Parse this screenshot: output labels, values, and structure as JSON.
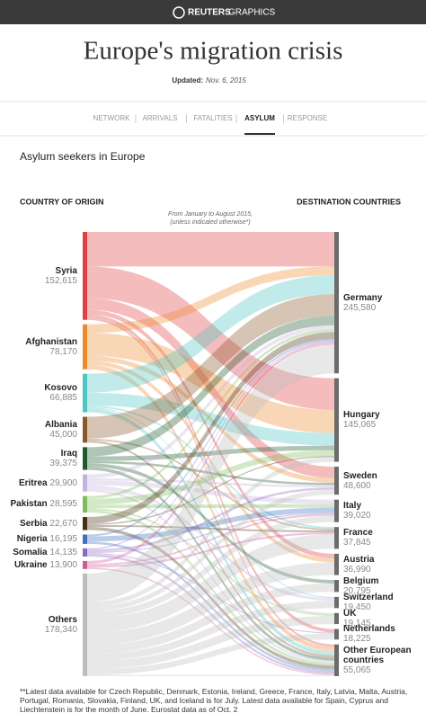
{
  "header": {
    "brand": "REUTERS",
    "brand_sub": "GRAPHICS",
    "title": "Europe's migration crisis",
    "updated_label": "Updated:",
    "updated_date": "Nov. 6, 2015"
  },
  "nav": {
    "items": [
      "NETWORK",
      "ARRIVALS",
      "FATALITIES",
      "ASYLUM",
      "RESPONSE"
    ],
    "active": "ASYLUM"
  },
  "chart_data": {
    "type": "sankey",
    "title": "Asylum seekers in Europe",
    "left_label": "COUNTRY OF ORIGIN",
    "right_label": "DESTINATION COUNTRIES",
    "note": [
      "From January to August 2015,",
      "(unless indicated otherwise*)"
    ],
    "sources": {
      "names": [
        "Syria",
        "Afghanistan",
        "Kosovo",
        "Albania",
        "Iraq",
        "Eritrea",
        "Pakistan",
        "Serbia",
        "Nigeria",
        "Somalia",
        "Ukraine",
        "Others"
      ],
      "values": [
        152615,
        78170,
        66885,
        45000,
        39375,
        29900,
        28595,
        22670,
        16195,
        14135,
        13900,
        178340
      ],
      "value_labels": [
        "152,615",
        "78,170",
        "66,885",
        "45,000",
        "39,375",
        "29,900",
        "28,595",
        "22,670",
        "16,195",
        "14,135",
        "13,900",
        "178,340"
      ],
      "colors": [
        "#e0403f",
        "#ee8a2e",
        "#4cc6c4",
        "#8a5a2b",
        "#1f5a2e",
        "#c4b3de",
        "#7cbf5a",
        "#4a2e12",
        "#3f6fbf",
        "#8a6ac0",
        "#d05a98",
        "#bdbdbd"
      ]
    },
    "targets": {
      "names": [
        "Germany",
        "Hungary",
        "Sweden",
        "Italy",
        "France",
        "Austria",
        "Belgium",
        "Switzerland",
        "UK",
        "Netherlands",
        "Other European countries"
      ],
      "values": [
        245580,
        145065,
        48600,
        39020,
        37845,
        36990,
        20795,
        19450,
        19145,
        18225,
        55065
      ],
      "value_labels": [
        "245,580",
        "145,065",
        "48,600",
        "39,020",
        "37,845",
        "36,990",
        "20,795",
        "19,450",
        "19,145",
        "18,225",
        "55,065"
      ],
      "color": "#6b6b6b"
    },
    "links": [
      {
        "from": "Syria",
        "to": "Germany",
        "value": 60000
      },
      {
        "from": "Syria",
        "to": "Hungary",
        "value": 55000
      },
      {
        "from": "Syria",
        "to": "Sweden",
        "value": 20000
      },
      {
        "from": "Syria",
        "to": "Austria",
        "value": 8000
      },
      {
        "from": "Syria",
        "to": "Netherlands",
        "value": 6000
      },
      {
        "from": "Syria",
        "to": "Other European countries",
        "value": 3615
      },
      {
        "from": "Afghanistan",
        "to": "Germany",
        "value": 15000
      },
      {
        "from": "Afghanistan",
        "to": "Hungary",
        "value": 40000
      },
      {
        "from": "Afghanistan",
        "to": "Sweden",
        "value": 8000
      },
      {
        "from": "Afghanistan",
        "to": "Austria",
        "value": 7000
      },
      {
        "from": "Afghanistan",
        "to": "Other European countries",
        "value": 8170
      },
      {
        "from": "Kosovo",
        "to": "Germany",
        "value": 33000
      },
      {
        "from": "Kosovo",
        "to": "Hungary",
        "value": 22000
      },
      {
        "from": "Kosovo",
        "to": "France",
        "value": 3000
      },
      {
        "from": "Kosovo",
        "to": "Switzerland",
        "value": 1885
      },
      {
        "from": "Kosovo",
        "to": "Other European countries",
        "value": 7000
      },
      {
        "from": "Albania",
        "to": "Germany",
        "value": 38000
      },
      {
        "from": "Albania",
        "to": "France",
        "value": 3000
      },
      {
        "from": "Albania",
        "to": "Other European countries",
        "value": 4000
      },
      {
        "from": "Iraq",
        "to": "Germany",
        "value": 16000
      },
      {
        "from": "Iraq",
        "to": "Hungary",
        "value": 8000
      },
      {
        "from": "Iraq",
        "to": "Sweden",
        "value": 4000
      },
      {
        "from": "Iraq",
        "to": "Belgium",
        "value": 6000
      },
      {
        "from": "Iraq",
        "to": "Other European countries",
        "value": 5375
      },
      {
        "from": "Eritrea",
        "to": "Germany",
        "value": 7000
      },
      {
        "from": "Eritrea",
        "to": "Sweden",
        "value": 4000
      },
      {
        "from": "Eritrea",
        "to": "Italy",
        "value": 8000
      },
      {
        "from": "Eritrea",
        "to": "Switzerland",
        "value": 5000
      },
      {
        "from": "Eritrea",
        "to": "UK",
        "value": 2000
      },
      {
        "from": "Eritrea",
        "to": "Other European countries",
        "value": 3900
      },
      {
        "from": "Pakistan",
        "to": "Germany",
        "value": 5000
      },
      {
        "from": "Pakistan",
        "to": "Hungary",
        "value": 10000
      },
      {
        "from": "Pakistan",
        "to": "Italy",
        "value": 6000
      },
      {
        "from": "Pakistan",
        "to": "UK",
        "value": 3000
      },
      {
        "from": "Pakistan",
        "to": "Other European countries",
        "value": 4595
      },
      {
        "from": "Serbia",
        "to": "Germany",
        "value": 12000
      },
      {
        "from": "Serbia",
        "to": "Hungary",
        "value": 2000
      },
      {
        "from": "Serbia",
        "to": "France",
        "value": 3000
      },
      {
        "from": "Serbia",
        "to": "Other European countries",
        "value": 5670
      },
      {
        "from": "Nigeria",
        "to": "Germany",
        "value": 3000
      },
      {
        "from": "Nigeria",
        "to": "Italy",
        "value": 9000
      },
      {
        "from": "Nigeria",
        "to": "Other European countries",
        "value": 4195
      },
      {
        "from": "Somalia",
        "to": "Germany",
        "value": 2000
      },
      {
        "from": "Somalia",
        "to": "Sweden",
        "value": 4000
      },
      {
        "from": "Somalia",
        "to": "Italy",
        "value": 2000
      },
      {
        "from": "Somalia",
        "to": "Netherlands",
        "value": 2000
      },
      {
        "from": "Somalia",
        "to": "Other European countries",
        "value": 4135
      },
      {
        "from": "Ukraine",
        "to": "Germany",
        "value": 5000
      },
      {
        "from": "Ukraine",
        "to": "Italy",
        "value": 3000
      },
      {
        "from": "Ukraine",
        "to": "France",
        "value": 3500
      },
      {
        "from": "Ukraine",
        "to": "Other European countries",
        "value": 2400
      },
      {
        "from": "Others",
        "to": "Germany",
        "value": 49580
      },
      {
        "from": "Others",
        "to": "Hungary",
        "value": 8065
      },
      {
        "from": "Others",
        "to": "Sweden",
        "value": 8600
      },
      {
        "from": "Others",
        "to": "Italy",
        "value": 11020
      },
      {
        "from": "Others",
        "to": "France",
        "value": 25345
      },
      {
        "from": "Others",
        "to": "Austria",
        "value": 21990
      },
      {
        "from": "Others",
        "to": "Belgium",
        "value": 14795
      },
      {
        "from": "Others",
        "to": "Switzerland",
        "value": 12565
      },
      {
        "from": "Others",
        "to": "UK",
        "value": 14145
      },
      {
        "from": "Others",
        "to": "Netherlands",
        "value": 10225
      },
      {
        "from": "Others",
        "to": "Other European countries",
        "value": 2010
      }
    ],
    "footnote": "**Latest data available for Czech Republic, Denmark, Estonia, Ireland, Greece, France, Italy, Latvia, Malta, Austria, Portugal, Romania, Slovakia, Finland, UK, and Iceland is for July. Latest data available for Spain, Cyprus and Liechtenstein is for the month of June. Eurostat data as of Oct. 2"
  }
}
